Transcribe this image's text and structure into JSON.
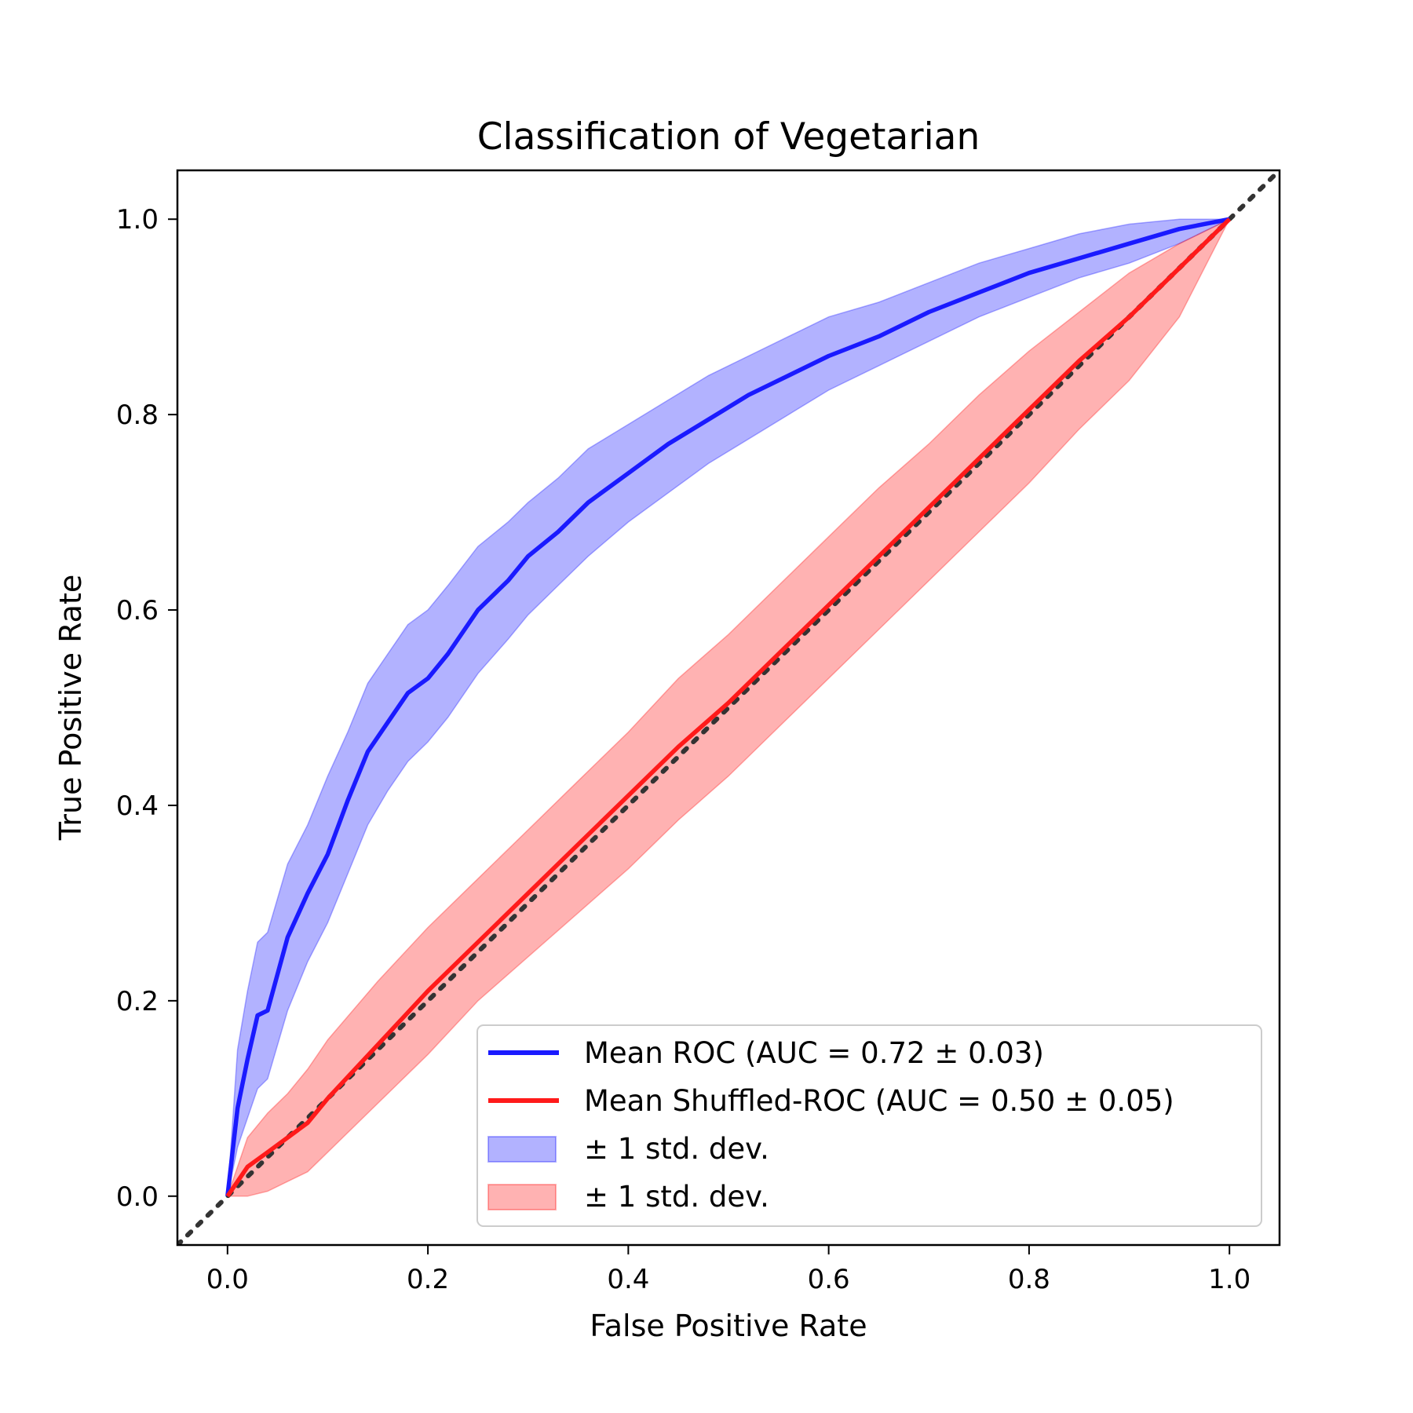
{
  "chart_data": {
    "type": "line",
    "title": "Classification of Vegetarian",
    "xlabel": "False Positive Rate",
    "ylabel": "True Positive Rate",
    "xlim": [
      -0.05,
      1.05
    ],
    "ylim": [
      -0.05,
      1.05
    ],
    "xticks": [
      "0.0",
      "0.2",
      "0.4",
      "0.6",
      "0.8",
      "1.0"
    ],
    "yticks": [
      "0.0",
      "0.2",
      "0.4",
      "0.6",
      "0.8",
      "1.0"
    ],
    "grid": false,
    "legend_position": "lower-right",
    "series": [
      {
        "name": "Mean ROC (AUC = 0.72 ± 0.03)",
        "color": "#1a1aff",
        "band_label": "± 1 std. dev.",
        "band_color": "#0000ff",
        "x": [
          0.0,
          0.01,
          0.02,
          0.03,
          0.04,
          0.06,
          0.08,
          0.1,
          0.12,
          0.14,
          0.16,
          0.18,
          0.2,
          0.22,
          0.25,
          0.28,
          0.3,
          0.33,
          0.36,
          0.4,
          0.44,
          0.48,
          0.52,
          0.56,
          0.6,
          0.65,
          0.7,
          0.75,
          0.8,
          0.85,
          0.9,
          0.95,
          1.0
        ],
        "y": [
          0.0,
          0.09,
          0.14,
          0.185,
          0.19,
          0.265,
          0.31,
          0.35,
          0.405,
          0.455,
          0.485,
          0.515,
          0.53,
          0.555,
          0.6,
          0.63,
          0.655,
          0.68,
          0.71,
          0.74,
          0.77,
          0.795,
          0.82,
          0.84,
          0.86,
          0.88,
          0.905,
          0.925,
          0.945,
          0.96,
          0.975,
          0.99,
          1.0
        ],
        "lower": [
          0.0,
          0.05,
          0.08,
          0.11,
          0.12,
          0.19,
          0.24,
          0.28,
          0.33,
          0.38,
          0.415,
          0.445,
          0.465,
          0.49,
          0.535,
          0.57,
          0.595,
          0.625,
          0.655,
          0.69,
          0.72,
          0.75,
          0.775,
          0.8,
          0.825,
          0.85,
          0.875,
          0.9,
          0.92,
          0.94,
          0.955,
          0.975,
          1.0
        ],
        "upper": [
          0.0,
          0.15,
          0.21,
          0.26,
          0.27,
          0.34,
          0.38,
          0.43,
          0.475,
          0.525,
          0.555,
          0.585,
          0.6,
          0.625,
          0.665,
          0.69,
          0.71,
          0.735,
          0.765,
          0.79,
          0.815,
          0.84,
          0.86,
          0.88,
          0.9,
          0.915,
          0.935,
          0.955,
          0.97,
          0.985,
          0.995,
          1.0,
          1.0
        ]
      },
      {
        "name": "Mean Shuffled-ROC (AUC = 0.50 ± 0.05)",
        "color": "#ff1a1a",
        "band_label": "± 1 std. dev.",
        "band_color": "#ff0000",
        "x": [
          0.0,
          0.02,
          0.04,
          0.06,
          0.08,
          0.1,
          0.15,
          0.2,
          0.25,
          0.3,
          0.35,
          0.4,
          0.45,
          0.5,
          0.55,
          0.6,
          0.65,
          0.7,
          0.75,
          0.8,
          0.85,
          0.9,
          0.95,
          1.0
        ],
        "y": [
          0.0,
          0.03,
          0.045,
          0.06,
          0.075,
          0.1,
          0.155,
          0.21,
          0.26,
          0.31,
          0.36,
          0.41,
          0.46,
          0.505,
          0.555,
          0.605,
          0.655,
          0.705,
          0.755,
          0.805,
          0.855,
          0.9,
          0.95,
          1.0
        ],
        "lower": [
          0.0,
          0.0,
          0.005,
          0.015,
          0.025,
          0.045,
          0.095,
          0.145,
          0.2,
          0.245,
          0.29,
          0.335,
          0.385,
          0.43,
          0.48,
          0.53,
          0.58,
          0.63,
          0.68,
          0.73,
          0.785,
          0.835,
          0.9,
          1.0
        ],
        "upper": [
          0.0,
          0.06,
          0.085,
          0.105,
          0.13,
          0.16,
          0.22,
          0.275,
          0.325,
          0.375,
          0.425,
          0.475,
          0.53,
          0.575,
          0.625,
          0.675,
          0.725,
          0.77,
          0.82,
          0.865,
          0.905,
          0.945,
          0.975,
          1.0
        ]
      }
    ],
    "reference_line": {
      "x": [
        -0.05,
        1.05
      ],
      "y": [
        -0.05,
        1.05
      ],
      "style": "dotted",
      "color": "#333333"
    }
  }
}
